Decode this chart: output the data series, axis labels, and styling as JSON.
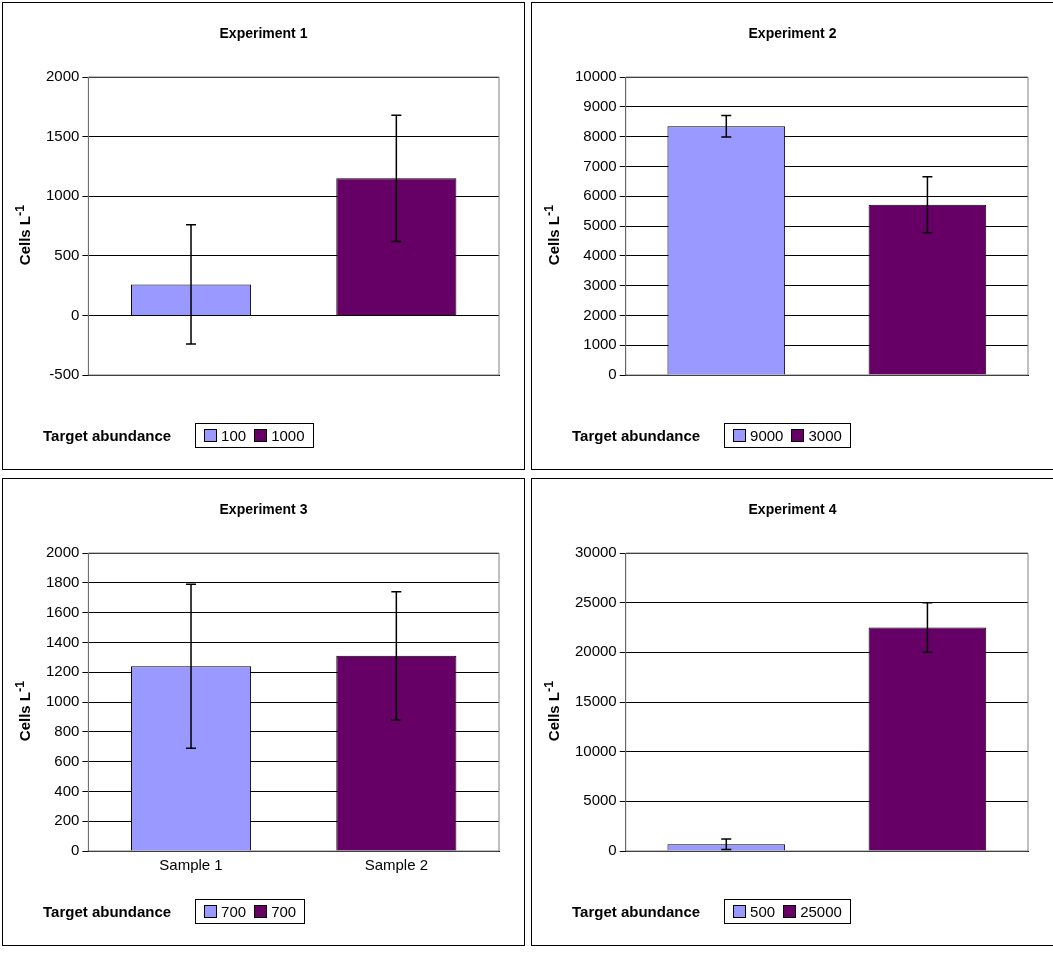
{
  "chart_data": [
    {
      "type": "bar",
      "title": "Experiment 1",
      "ylabel": "Cells L$^{-1}$",
      "legend_title": "Target abundance",
      "categories": [
        null,
        null
      ],
      "series": [
        {
          "name": "100",
          "color": "#9999ff",
          "values": [
            260,
            null
          ],
          "errors": [
            500,
            null
          ]
        },
        {
          "name": "1000",
          "color": "#660066",
          "values": [
            null,
            1150
          ],
          "errors": [
            null,
            530
          ]
        }
      ],
      "ylim": [
        -500,
        2000
      ],
      "yticks": [
        -500,
        0,
        500,
        1000,
        1500,
        2000
      ],
      "grid": "y",
      "legend": "bottom"
    },
    {
      "type": "bar",
      "title": "Experiment 2",
      "ylabel": "Cells L$^{-1}$",
      "legend_title": "Target abundance",
      "categories": [
        null,
        null
      ],
      "series": [
        {
          "name": "9000",
          "color": "#9999ff",
          "values": [
            8350,
            null
          ],
          "errors": [
            360,
            null
          ]
        },
        {
          "name": "3000",
          "color": "#660066",
          "values": [
            null,
            5710
          ],
          "errors": [
            null,
            940
          ]
        }
      ],
      "ylim": [
        0,
        10000
      ],
      "yticks": [
        0,
        1000,
        2000,
        3000,
        4000,
        5000,
        6000,
        7000,
        8000,
        9000,
        10000
      ],
      "grid": "y",
      "legend": "bottom"
    },
    {
      "type": "bar",
      "title": "Experiment 3",
      "ylabel": "Cells L$^{-1}$",
      "legend_title": "Target abundance",
      "categories": [
        "Sample 1",
        "Sample 2"
      ],
      "series": [
        {
          "name": "700",
          "color": "#9999ff",
          "values": [
            1240,
            null
          ],
          "errors": [
            550,
            null
          ]
        },
        {
          "name": "700",
          "color": "#660066",
          "values": [
            null,
            1310
          ],
          "errors": [
            null,
            430
          ]
        }
      ],
      "ylim": [
        0,
        2000
      ],
      "yticks": [
        0,
        200,
        400,
        600,
        800,
        1000,
        1200,
        1400,
        1600,
        1800,
        2000
      ],
      "grid": "y",
      "legend": "bottom"
    },
    {
      "type": "bar",
      "title": "Experiment 4",
      "ylabel": "Cells L$^{-1}$",
      "legend_title": "Target abundance",
      "categories": [
        null,
        null
      ],
      "series": [
        {
          "name": "500",
          "color": "#9999ff",
          "values": [
            670,
            null
          ],
          "errors": [
            530,
            null
          ]
        },
        {
          "name": "25000",
          "color": "#660066",
          "values": [
            null,
            22500
          ],
          "errors": [
            null,
            2500
          ]
        }
      ],
      "ylim": [
        0,
        30000
      ],
      "yticks": [
        0,
        5000,
        10000,
        15000,
        20000,
        25000,
        30000
      ],
      "grid": "y",
      "legend": "bottom"
    }
  ]
}
